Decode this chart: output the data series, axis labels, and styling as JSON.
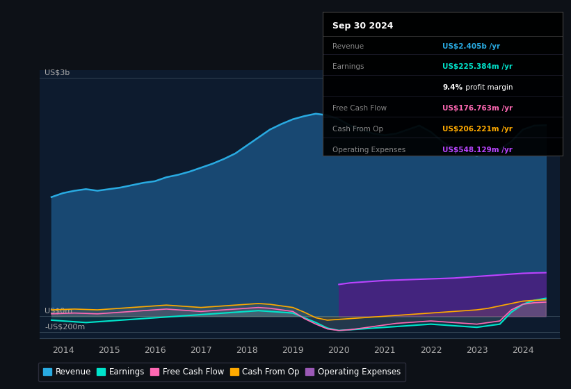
{
  "bg_color": "#0d1117",
  "plot_bg_color": "#0d1b2e",
  "legend": [
    {
      "label": "Revenue",
      "color": "#29abe2"
    },
    {
      "label": "Earnings",
      "color": "#00e5cc"
    },
    {
      "label": "Free Cash Flow",
      "color": "#ff69b4"
    },
    {
      "label": "Cash From Op",
      "color": "#ffaa00"
    },
    {
      "label": "Operating Expenses",
      "color": "#9b59b6"
    }
  ],
  "x_years": [
    2013.75,
    2014.0,
    2014.25,
    2014.5,
    2014.75,
    2015.0,
    2015.25,
    2015.5,
    2015.75,
    2016.0,
    2016.25,
    2016.5,
    2016.75,
    2017.0,
    2017.25,
    2017.5,
    2017.75,
    2018.0,
    2018.25,
    2018.5,
    2018.75,
    2019.0,
    2019.25,
    2019.5,
    2019.75,
    2020.0,
    2020.25,
    2020.5,
    2020.75,
    2021.0,
    2021.25,
    2021.5,
    2021.75,
    2022.0,
    2022.25,
    2022.5,
    2022.75,
    2023.0,
    2023.25,
    2023.5,
    2023.75,
    2024.0,
    2024.25,
    2024.5
  ],
  "revenue": [
    1500,
    1550,
    1580,
    1600,
    1580,
    1600,
    1620,
    1650,
    1680,
    1700,
    1750,
    1780,
    1820,
    1870,
    1920,
    1980,
    2050,
    2150,
    2250,
    2350,
    2420,
    2480,
    2520,
    2550,
    2530,
    2480,
    2400,
    2350,
    2300,
    2280,
    2300,
    2350,
    2400,
    2320,
    2200,
    2100,
    2050,
    2020,
    2050,
    2100,
    2200,
    2350,
    2400,
    2405
  ],
  "earnings": [
    -50,
    -60,
    -70,
    -80,
    -70,
    -60,
    -50,
    -40,
    -30,
    -20,
    -10,
    0,
    10,
    20,
    30,
    40,
    50,
    60,
    70,
    60,
    50,
    40,
    -20,
    -80,
    -150,
    -180,
    -170,
    -160,
    -150,
    -140,
    -130,
    -120,
    -110,
    -100,
    -110,
    -120,
    -130,
    -140,
    -120,
    -100,
    50,
    150,
    200,
    225
  ],
  "free_cash_flow": [
    30,
    35,
    40,
    35,
    30,
    40,
    50,
    60,
    70,
    80,
    90,
    80,
    70,
    60,
    70,
    80,
    90,
    100,
    110,
    100,
    80,
    60,
    -30,
    -100,
    -160,
    -180,
    -170,
    -150,
    -130,
    -110,
    -90,
    -80,
    -70,
    -60,
    -70,
    -80,
    -90,
    -100,
    -80,
    -60,
    80,
    150,
    170,
    177
  ],
  "cash_from_op": [
    80,
    85,
    90,
    85,
    80,
    90,
    100,
    110,
    120,
    130,
    140,
    130,
    120,
    110,
    120,
    130,
    140,
    150,
    160,
    150,
    130,
    110,
    50,
    -20,
    -50,
    -40,
    -30,
    -20,
    -10,
    0,
    10,
    20,
    30,
    40,
    50,
    60,
    70,
    80,
    100,
    130,
    160,
    190,
    200,
    206
  ],
  "op_expenses": [
    0,
    0,
    0,
    0,
    0,
    0,
    0,
    0,
    0,
    0,
    0,
    0,
    0,
    0,
    0,
    0,
    0,
    0,
    0,
    0,
    0,
    0,
    0,
    0,
    0,
    400,
    420,
    430,
    440,
    450,
    455,
    460,
    465,
    470,
    475,
    480,
    490,
    500,
    510,
    520,
    530,
    540,
    545,
    548
  ],
  "ylim": [
    -280,
    3100
  ],
  "xlim": [
    2013.5,
    2024.8
  ],
  "xticks": [
    2014,
    2015,
    2016,
    2017,
    2018,
    2019,
    2020,
    2021,
    2022,
    2023,
    2024
  ],
  "hlines": [
    {
      "y": 3000,
      "label": "US$3b"
    },
    {
      "y": 0,
      "label": "US$0m"
    },
    {
      "y": -200,
      "label": "-US$200m"
    }
  ],
  "info_box": {
    "title": "Sep 30 2024",
    "rows": [
      {
        "label": "Revenue",
        "value": "US$2.405b /yr",
        "value_color": "#29abe2"
      },
      {
        "label": "Earnings",
        "value": "US$225.384m /yr",
        "value_color": "#00e5cc"
      },
      {
        "label": "",
        "value": "9.4% profit margin",
        "value_color": "#ffffff",
        "bold_pct": "9.4%"
      },
      {
        "label": "Free Cash Flow",
        "value": "US$176.763m /yr",
        "value_color": "#ff69b4"
      },
      {
        "label": "Cash From Op",
        "value": "US$206.221m /yr",
        "value_color": "#ffaa00"
      },
      {
        "label": "Operating Expenses",
        "value": "US$548.129m /yr",
        "value_color": "#bb44ff"
      }
    ]
  }
}
